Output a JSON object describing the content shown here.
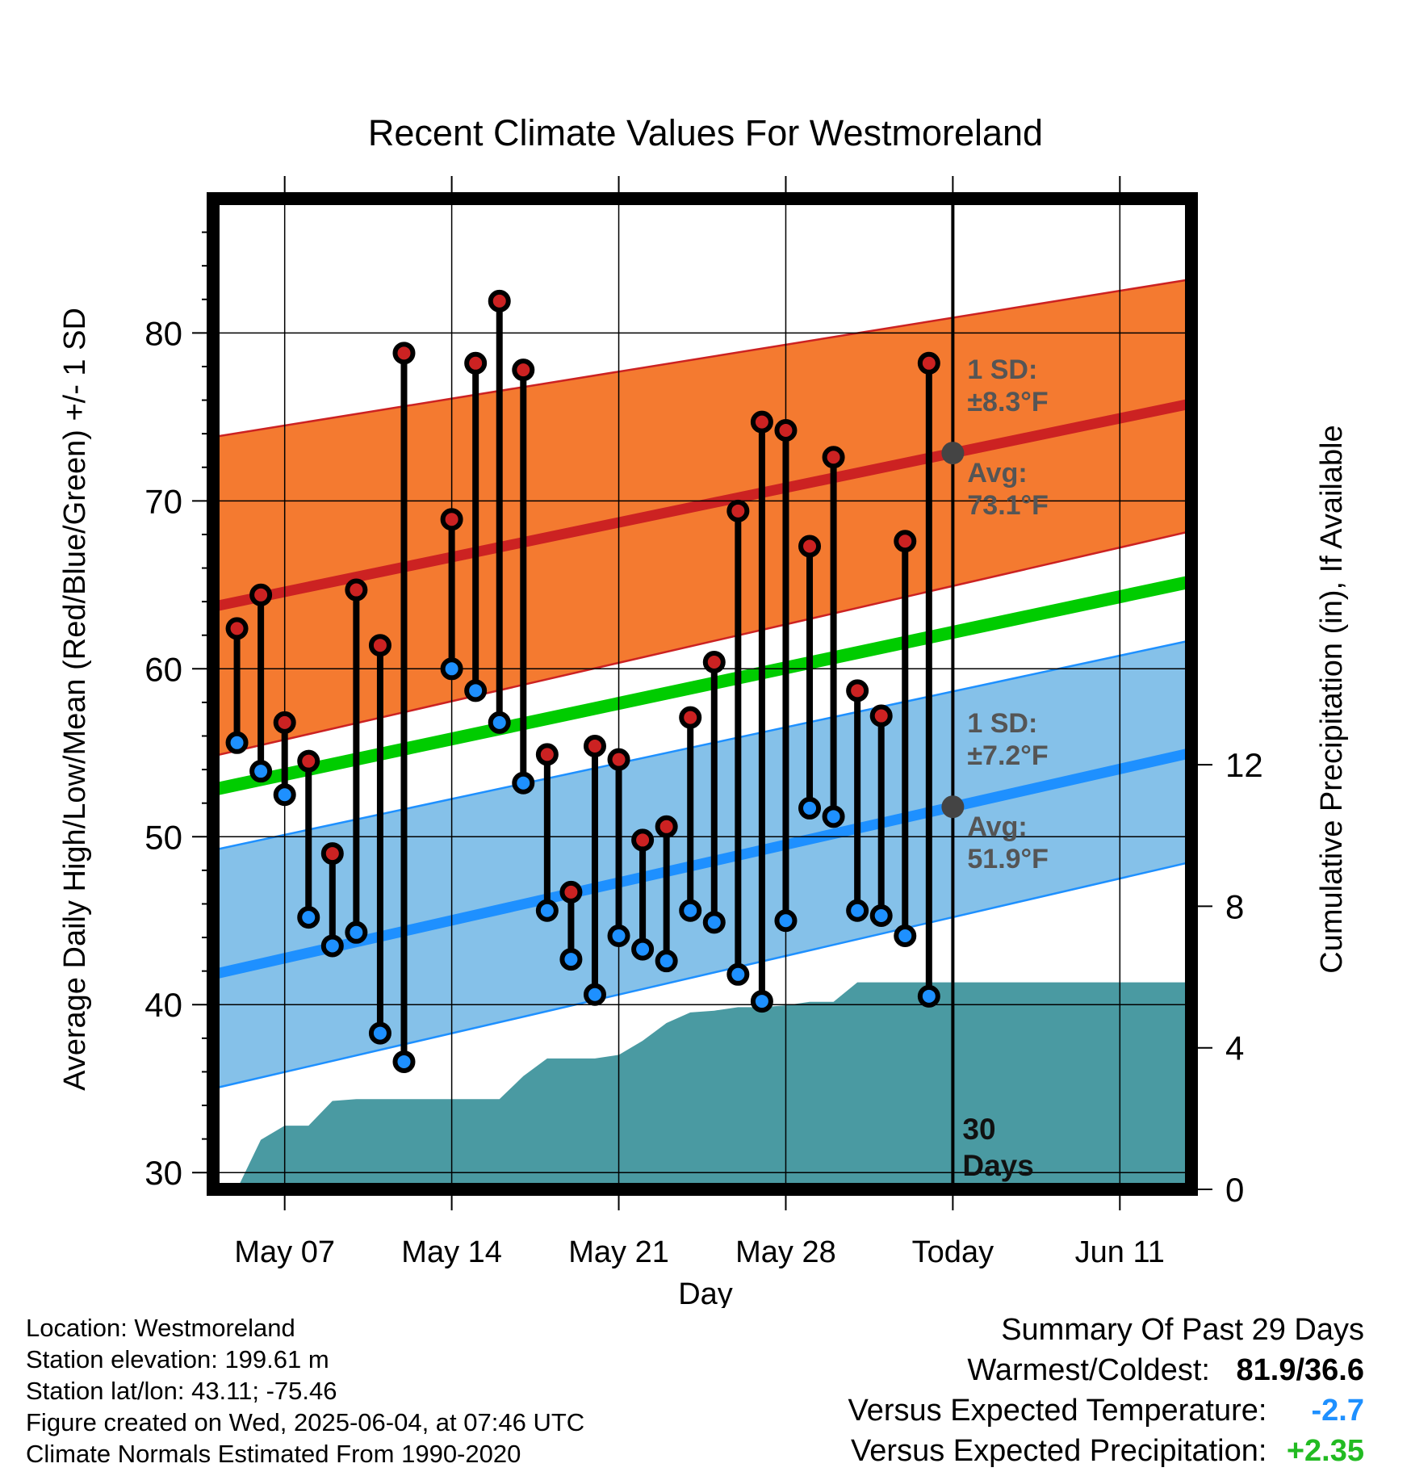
{
  "chart_data": {
    "type": "line",
    "title": "Recent Climate Values For Westmoreland",
    "xlabel": "Day",
    "ylabel": "Average Daily High/Low/Mean (Red/Blue/Green) +/- 1 SD",
    "y2label": "Cumulative Precipitation (in), If Available",
    "ylim": [
      29,
      88
    ],
    "y2lim": [
      0,
      28
    ],
    "yticks": [
      "30",
      "40",
      "50",
      "60",
      "70",
      "80"
    ],
    "y2ticks": [
      "0",
      "4",
      "8",
      "12"
    ],
    "xdomain_days": [
      "2025-05-04",
      "2025-06-14"
    ],
    "xticks": [
      {
        "label": "May 07",
        "date": "2025-05-07"
      },
      {
        "label": "May 14",
        "date": "2025-05-14"
      },
      {
        "label": "May 21",
        "date": "2025-05-21"
      },
      {
        "label": "May 28",
        "date": "2025-05-28"
      },
      {
        "label": "Today",
        "date": "2025-06-04"
      },
      {
        "label": "Jun 11",
        "date": "2025-06-11"
      }
    ],
    "today_date": "2025-06-04",
    "today_label": "30\nDays",
    "grid": true,
    "normals": {
      "high_avg": {
        "start": 63.7,
        "end": 75.8,
        "color": "#cc2222"
      },
      "high_band": {
        "start": [
          54.8,
          73.8
        ],
        "end": [
          68.2,
          83.2
        ],
        "color": "#f47a30"
      },
      "mean_avg": {
        "start": 52.8,
        "end": 65.2,
        "color": "#00cc00"
      },
      "low_avg": {
        "start": 41.8,
        "end": 55.0,
        "color": "#1e90ff"
      },
      "low_band": {
        "start": [
          35.0,
          49.2
        ],
        "end": [
          48.5,
          61.7
        ],
        "color": "#85c1e9"
      }
    },
    "annotations": [
      {
        "text": "1 SD:",
        "series": "high"
      },
      {
        "text": "±8.3°F",
        "series": "high"
      },
      {
        "text": "Avg:",
        "series": "high"
      },
      {
        "text": "73.1°F",
        "series": "high"
      },
      {
        "text": "1 SD:",
        "series": "low"
      },
      {
        "text": "±7.2°F",
        "series": "low"
      },
      {
        "text": "Avg:",
        "series": "low"
      },
      {
        "text": "51.9°F",
        "series": "low"
      }
    ],
    "daily": [
      {
        "date": "2025-05-05",
        "high": 62.4,
        "low": 55.6
      },
      {
        "date": "2025-05-06",
        "high": 64.4,
        "low": 53.9
      },
      {
        "date": "2025-05-07",
        "high": 56.8,
        "low": 52.5
      },
      {
        "date": "2025-05-08",
        "high": 54.5,
        "low": 45.2
      },
      {
        "date": "2025-05-09",
        "high": 49.0,
        "low": 43.5
      },
      {
        "date": "2025-05-10",
        "high": 64.7,
        "low": 44.3
      },
      {
        "date": "2025-05-11",
        "high": 61.4,
        "low": 38.3
      },
      {
        "date": "2025-05-12",
        "high": 78.8,
        "low": 36.6
      },
      {
        "date": "2025-05-14",
        "high": 68.9,
        "low": 60.0
      },
      {
        "date": "2025-05-15",
        "high": 78.2,
        "low": 58.7
      },
      {
        "date": "2025-05-16",
        "high": 81.9,
        "low": 56.8
      },
      {
        "date": "2025-05-17",
        "high": 77.8,
        "low": 53.2
      },
      {
        "date": "2025-05-18",
        "high": 54.9,
        "low": 45.6
      },
      {
        "date": "2025-05-19",
        "high": 46.7,
        "low": 42.7
      },
      {
        "date": "2025-05-20",
        "high": 55.4,
        "low": 40.6
      },
      {
        "date": "2025-05-21",
        "high": 54.6,
        "low": 44.1
      },
      {
        "date": "2025-05-22",
        "high": 49.8,
        "low": 43.3
      },
      {
        "date": "2025-05-23",
        "high": 50.6,
        "low": 42.6
      },
      {
        "date": "2025-05-24",
        "high": 57.1,
        "low": 45.6
      },
      {
        "date": "2025-05-25",
        "high": 60.4,
        "low": 44.9
      },
      {
        "date": "2025-05-26",
        "high": 69.4,
        "low": 41.8
      },
      {
        "date": "2025-05-27",
        "high": 74.7,
        "low": 40.2
      },
      {
        "date": "2025-05-28",
        "high": 74.2,
        "low": 45.0
      },
      {
        "date": "2025-05-29",
        "high": 67.3,
        "low": 51.7
      },
      {
        "date": "2025-05-30",
        "high": 72.6,
        "low": 51.2
      },
      {
        "date": "2025-05-31",
        "high": 58.7,
        "low": 45.6
      },
      {
        "date": "2025-06-01",
        "high": 57.2,
        "low": 45.3
      },
      {
        "date": "2025-06-02",
        "high": 67.6,
        "low": 44.1
      },
      {
        "date": "2025-06-03",
        "high": 78.2,
        "low": 40.5
      }
    ],
    "precip_cumulative": [
      {
        "date": "2025-05-04",
        "value": 0.0
      },
      {
        "date": "2025-05-05",
        "value": 0.0
      },
      {
        "date": "2025-05-06",
        "value": 1.4
      },
      {
        "date": "2025-05-07",
        "value": 1.8
      },
      {
        "date": "2025-05-08",
        "value": 1.8
      },
      {
        "date": "2025-05-09",
        "value": 2.5
      },
      {
        "date": "2025-05-10",
        "value": 2.55
      },
      {
        "date": "2025-05-11",
        "value": 2.55
      },
      {
        "date": "2025-05-12",
        "value": 2.55
      },
      {
        "date": "2025-05-13",
        "value": 2.55
      },
      {
        "date": "2025-05-14",
        "value": 2.55
      },
      {
        "date": "2025-05-15",
        "value": 2.55
      },
      {
        "date": "2025-05-16",
        "value": 2.55
      },
      {
        "date": "2025-05-17",
        "value": 3.2
      },
      {
        "date": "2025-05-18",
        "value": 3.7
      },
      {
        "date": "2025-05-19",
        "value": 3.7
      },
      {
        "date": "2025-05-20",
        "value": 3.7
      },
      {
        "date": "2025-05-21",
        "value": 3.8
      },
      {
        "date": "2025-05-22",
        "value": 4.2
      },
      {
        "date": "2025-05-23",
        "value": 4.7
      },
      {
        "date": "2025-05-24",
        "value": 5.0
      },
      {
        "date": "2025-05-25",
        "value": 5.05
      },
      {
        "date": "2025-05-26",
        "value": 5.15
      },
      {
        "date": "2025-05-27",
        "value": 5.15
      },
      {
        "date": "2025-05-28",
        "value": 5.2
      },
      {
        "date": "2025-05-29",
        "value": 5.3
      },
      {
        "date": "2025-05-30",
        "value": 5.3
      },
      {
        "date": "2025-05-31",
        "value": 5.85
      },
      {
        "date": "2025-06-01",
        "value": 5.85
      },
      {
        "date": "2025-06-02",
        "value": 5.85
      },
      {
        "date": "2025-06-03",
        "value": 5.85
      },
      {
        "date": "2025-06-04",
        "value": 5.85
      },
      {
        "date": "2025-06-14",
        "value": 5.85
      }
    ],
    "colors": {
      "high_marker": "#cc2222",
      "low_marker": "#1e90ff",
      "precip": "#4a9aa2",
      "annotation_text": "#555555",
      "today_marker": "#444444"
    }
  },
  "footer": {
    "location": "Location: Westmoreland",
    "elevation": "Station elevation: 199.61 m",
    "latlon": "Station lat/lon: 43.11; -75.46",
    "created": "Figure created on Wed, 2025-06-04, at 07:46 UTC",
    "normals": "Climate Normals Estimated From 1990-2020"
  },
  "summary": {
    "title": "Summary Of Past 29 Days",
    "warmest_label": "Warmest/Coldest:",
    "warmest_value": "81.9/36.6",
    "temp_label": "Versus Expected Temperature:",
    "temp_value": "-2.7",
    "temp_color": "#1e90ff",
    "precip_label": "Versus Expected Precipitation:",
    "precip_value": "+2.35",
    "precip_color": "#22bb22"
  }
}
